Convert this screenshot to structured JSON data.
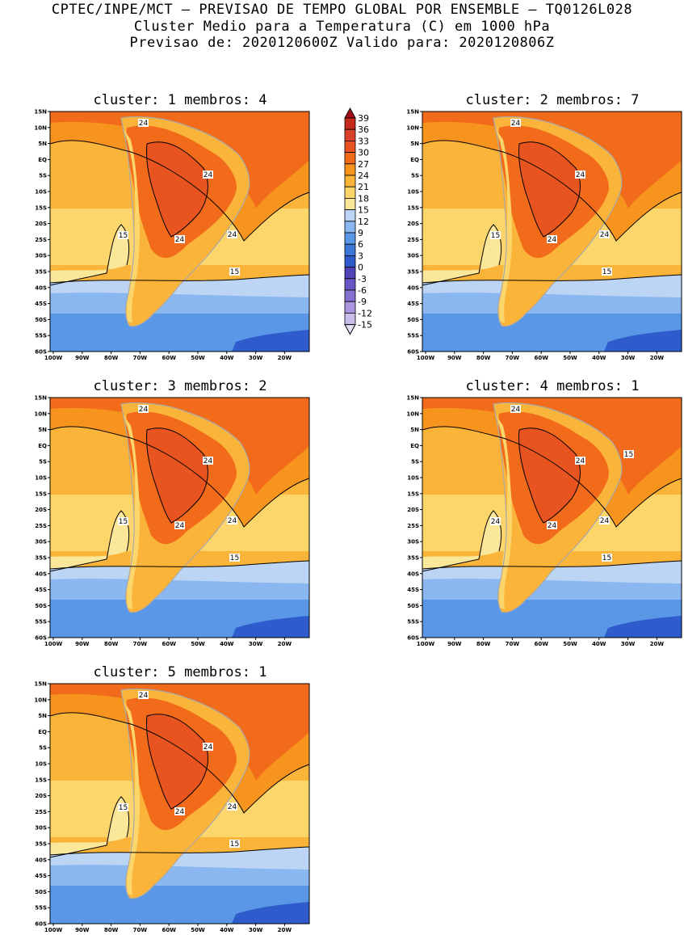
{
  "header": {
    "line1": "CPTEC/INPE/MCT – PREVISAO DE TEMPO GLOBAL POR ENSEMBLE – TQ0126L028",
    "line2": "Cluster Medio para a Temperatura (C) em 1000 hPa",
    "line3": "Previsao de: 2020120600Z   Valido para: 2020120806Z"
  },
  "panels": [
    {
      "title": "cluster: 1   membros: 4",
      "labels": [
        "24",
        "24",
        "24",
        "24",
        "15",
        "15"
      ]
    },
    {
      "title": "cluster: 2   membros: 7",
      "labels": [
        "24",
        "24",
        "24",
        "24",
        "15",
        "15"
      ]
    },
    {
      "title": "cluster: 3   membros: 2",
      "labels": [
        "24",
        "24",
        "24",
        "24",
        "15",
        "15"
      ]
    },
    {
      "title": "cluster: 4   membros: 1",
      "labels": [
        "24",
        "24",
        "24",
        "24",
        "24",
        "15",
        "15"
      ]
    },
    {
      "title": "cluster: 5   membros: 1",
      "labels": [
        "24",
        "24",
        "24",
        "24",
        "15",
        "15"
      ]
    }
  ],
  "axes": {
    "lat_ticks": [
      "15N",
      "10N",
      "5N",
      "EQ",
      "5S",
      "10S",
      "15S",
      "20S",
      "25S",
      "30S",
      "35S",
      "40S",
      "45S",
      "50S",
      "55S",
      "60S"
    ],
    "lon_ticks": [
      "100W",
      "90W",
      "80W",
      "70W",
      "60W",
      "50W",
      "40W",
      "30W",
      "20W"
    ]
  },
  "colorbar": {
    "labels": [
      "39",
      "36",
      "33",
      "30",
      "27",
      "24",
      "21",
      "18",
      "15",
      "12",
      "9",
      "6",
      "3",
      "0",
      "-3",
      "-6",
      "-9",
      "-12",
      "-15"
    ],
    "colors": [
      "#a50f15",
      "#c62a1c",
      "#d9412a",
      "#e8541f",
      "#f26b1b",
      "#f7941d",
      "#fbb43a",
      "#fdd66b",
      "#fbe79a",
      "#bcd5f5",
      "#8ab7ef",
      "#5a97e6",
      "#3c78d8",
      "#2e5ccd",
      "#5043b8",
      "#6a55c4",
      "#8571d0",
      "#a996de",
      "#c9bdec",
      "#e6e0f7"
    ]
  },
  "colors": {
    "contour": "#000000",
    "land_outline": "#a8a8a8"
  }
}
